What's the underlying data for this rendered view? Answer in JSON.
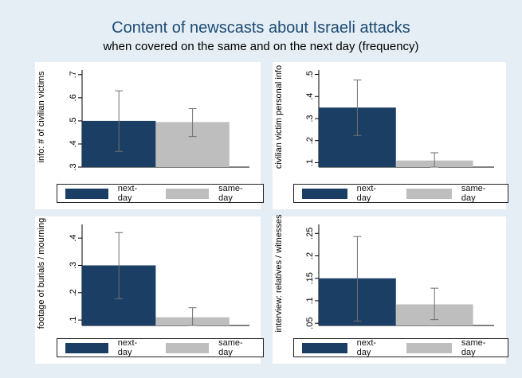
{
  "title": "Content of newscasts about Israeli attacks",
  "subtitle": "when covered on the same and on the next day (frequency)",
  "legend": {
    "next": "next-day",
    "same": "same-day"
  },
  "colors": {
    "next": "#1b3f64",
    "same": "#bebebe",
    "ci": "#707070",
    "background": "#e4eef4",
    "panel": "#ffffff"
  },
  "chart_data": [
    {
      "type": "bar",
      "ylabel": "info: # of civilian victims",
      "ylim": [
        0.3,
        0.72
      ],
      "yticks": [
        0.3,
        0.4,
        0.5,
        0.6,
        0.7
      ],
      "yticklabels": [
        ".3",
        ".4",
        ".5",
        ".6",
        ".7"
      ],
      "grid": false,
      "series": [
        {
          "name": "next-day",
          "value": 0.5,
          "ci": [
            0.368,
            0.63
          ]
        },
        {
          "name": "same-day",
          "value": 0.495,
          "ci": [
            0.432,
            0.553
          ]
        }
      ]
    },
    {
      "type": "bar",
      "ylabel": "civilian victim personal info",
      "ylim": [
        0.08,
        0.52
      ],
      "yticks": [
        0.1,
        0.2,
        0.3,
        0.4,
        0.5
      ],
      "yticklabels": [
        ".1",
        ".2",
        ".3",
        ".4",
        ".5"
      ],
      "grid": false,
      "series": [
        {
          "name": "next-day",
          "value": 0.35,
          "ci": [
            0.223,
            0.475
          ]
        },
        {
          "name": "same-day",
          "value": 0.11,
          "ci": [
            0.08,
            0.145
          ]
        }
      ]
    },
    {
      "type": "bar",
      "ylabel": "footage of burials / mourning",
      "ylim": [
        0.08,
        0.45
      ],
      "yticks": [
        0.1,
        0.2,
        0.3,
        0.4
      ],
      "yticklabels": [
        ".1",
        ".2",
        ".3",
        ".4"
      ],
      "grid": false,
      "series": [
        {
          "name": "next-day",
          "value": 0.3,
          "ci": [
            0.178,
            0.42
          ]
        },
        {
          "name": "same-day",
          "value": 0.11,
          "ci": [
            0.08,
            0.145
          ]
        }
      ]
    },
    {
      "type": "bar",
      "ylabel": "interview: relatives / witnesses",
      "ylim": [
        0.045,
        0.27
      ],
      "yticks": [
        0.05,
        0.1,
        0.15,
        0.2,
        0.25
      ],
      "yticklabels": [
        ".05",
        ".1",
        ".15",
        ".2",
        ".25"
      ],
      "grid": false,
      "series": [
        {
          "name": "next-day",
          "value": 0.15,
          "ci": [
            0.055,
            0.243
          ]
        },
        {
          "name": "same-day",
          "value": 0.092,
          "ci": [
            0.058,
            0.128
          ]
        }
      ]
    }
  ]
}
